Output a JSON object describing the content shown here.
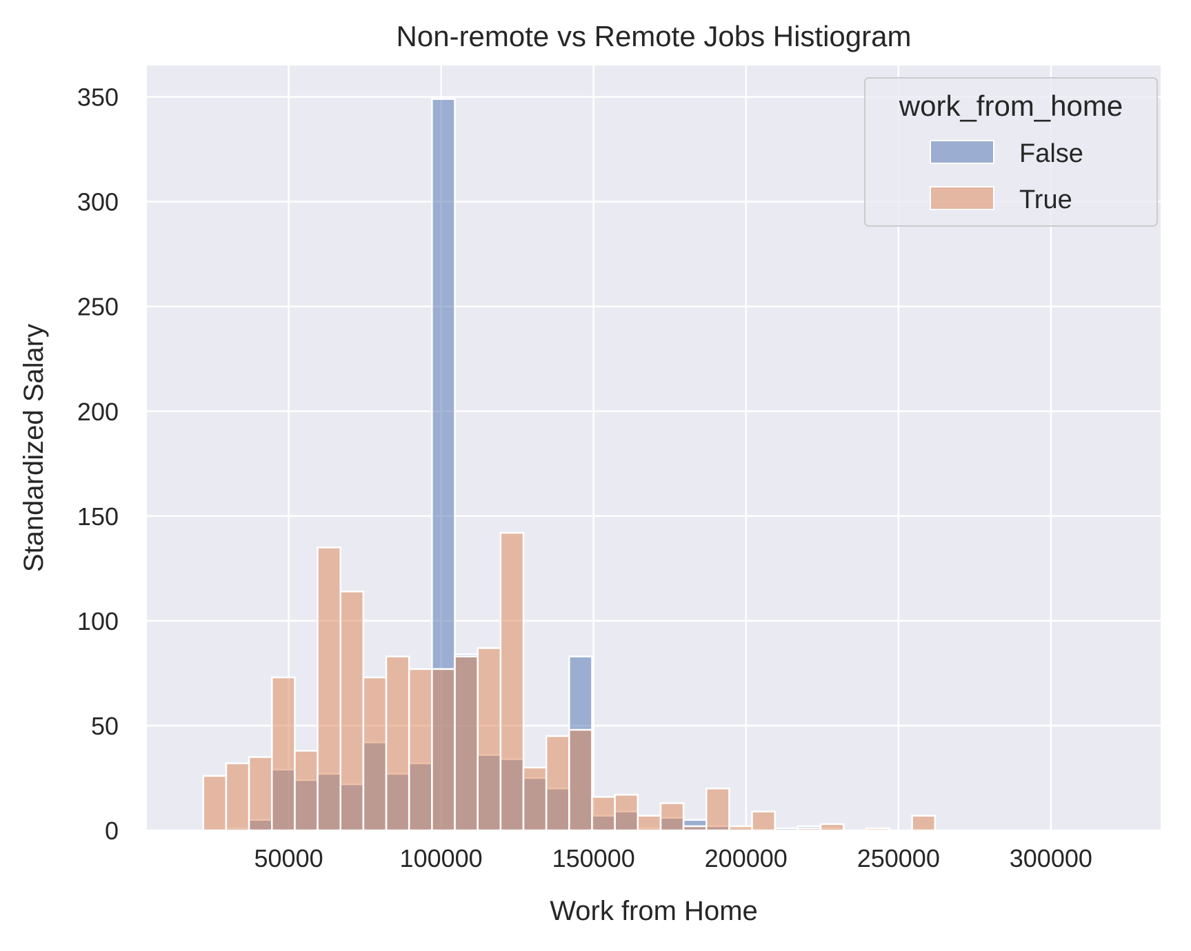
{
  "chart_data": {
    "type": "histogram",
    "title": "Non-remote vs Remote Jobs Histiogram",
    "xlabel": "Work from Home",
    "ylabel": "Standardized Salary",
    "xlim": [
      3500,
      336000
    ],
    "ylim": [
      0,
      365
    ],
    "xticks": [
      50000,
      100000,
      150000,
      200000,
      250000,
      300000
    ],
    "yticks": [
      0,
      50,
      100,
      150,
      200,
      250,
      300,
      350
    ],
    "grid": true,
    "bin_width": 7500,
    "legend": {
      "title": "work_from_home",
      "placement": "top-right"
    },
    "series": [
      {
        "name": "False",
        "color": "#4c72b0",
        "bin_starts": [
          22000,
          29500,
          37000,
          44500,
          52000,
          59500,
          67000,
          74500,
          82000,
          89500,
          97000,
          104500,
          112000,
          119500,
          127000,
          134500,
          142000,
          149500,
          157000,
          164500,
          172000,
          179500,
          187000,
          194500,
          202000,
          209500,
          217000,
          224500,
          232000,
          239500,
          247000,
          254500,
          262000,
          269500,
          277000,
          284500,
          292000,
          299500,
          307000,
          314500
        ],
        "values": [
          0,
          1,
          5,
          29,
          24,
          27,
          22,
          42,
          27,
          32,
          349,
          84,
          36,
          34,
          25,
          20,
          83,
          7,
          9,
          1,
          6,
          5,
          2,
          1,
          0,
          1,
          2,
          1,
          0,
          0,
          0,
          0,
          0,
          0,
          0,
          0,
          0,
          0,
          0,
          0
        ]
      },
      {
        "name": "True",
        "color": "#dd8452",
        "bin_starts": [
          22000,
          29500,
          37000,
          44500,
          52000,
          59500,
          67000,
          74500,
          82000,
          89500,
          97000,
          104500,
          112000,
          119500,
          127000,
          134500,
          142000,
          149500,
          157000,
          164500,
          172000,
          179500,
          187000,
          194500,
          202000,
          209500,
          217000,
          224500,
          232000,
          239500,
          247000,
          254500,
          262000,
          269500,
          277000,
          284500,
          292000,
          299500,
          307000,
          314500
        ],
        "values": [
          26,
          32,
          35,
          73,
          38,
          135,
          114,
          73,
          83,
          77,
          77,
          83,
          87,
          142,
          30,
          45,
          48,
          16,
          17,
          7,
          13,
          2,
          20,
          2,
          9,
          0,
          1,
          3,
          0,
          1,
          0,
          7,
          0,
          0,
          0,
          0,
          0,
          0,
          0,
          0
        ]
      }
    ]
  }
}
